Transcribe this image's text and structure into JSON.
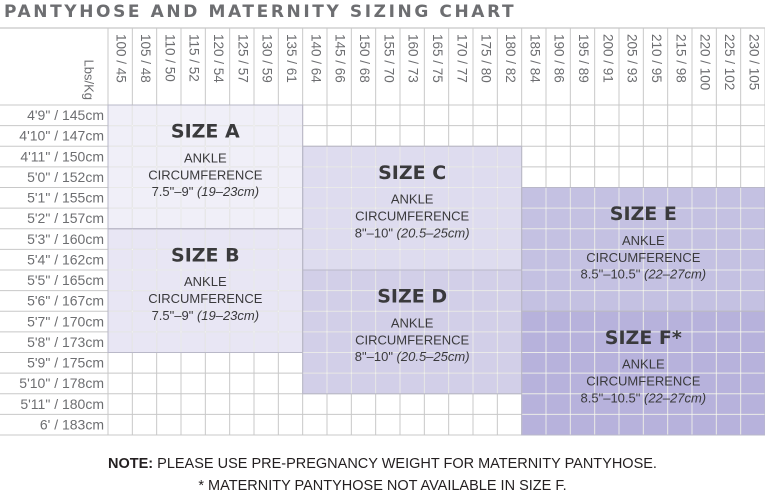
{
  "title": "PANTYHOSE AND MATERNITY SIZING CHART",
  "notes": {
    "note_label": "NOTE:",
    "note_text": " PLEASE USE PRE-PREGNANCY WEIGHT FOR MATERNITY PANTYHOSE.",
    "footnote": "* MATERNITY PANTYHOSE NOT AVAILABLE IN SIZE F."
  },
  "chart_data": {
    "type": "table",
    "title": "PANTYHOSE AND MATERNITY SIZING CHART",
    "corner_label": "Lbs/Kg",
    "weights": [
      "100 / 45",
      "105 / 48",
      "110 / 50",
      "115 / 52",
      "120 / 54",
      "125 / 57",
      "130 / 59",
      "135 / 61",
      "140 / 64",
      "145 / 66",
      "150 / 68",
      "155 / 70",
      "160 / 73",
      "165 / 75",
      "170 / 77",
      "175 / 80",
      "180 / 82",
      "185 / 84",
      "190 / 86",
      "195 / 89",
      "200 / 91",
      "205 / 93",
      "210 / 95",
      "215 / 98",
      "220 / 100",
      "225 / 102",
      "230 / 105"
    ],
    "heights": [
      "4'9\" / 145cm",
      "4'10\" / 147cm",
      "4'11\" / 150cm",
      "5'0\" / 152cm",
      "5'1\" / 155cm",
      "5'2\" / 157cm",
      "5'3\" / 160cm",
      "5'4\" / 162cm",
      "5'5\" / 165cm",
      "5'6\" / 167cm",
      "5'7\" / 170cm",
      "5'8\" / 173cm",
      "5'9\" / 175cm",
      "5'10\" / 178cm",
      "5'11\" / 180cm",
      "6' / 183cm"
    ],
    "sizes": [
      {
        "name": "SIZE A",
        "weight_from": "100 / 45",
        "weight_to": "135 / 61",
        "height_from": "4'9\" / 145cm",
        "height_to": "5'2\" / 157cm",
        "ankle_label": "ANKLE",
        "circ_label": "CIRCUMFERENCE",
        "range_in": "7.5\"–9\"",
        "range_cm": "(19–23cm)",
        "color": "#f0eff8"
      },
      {
        "name": "SIZE B",
        "weight_from": "100 / 45",
        "weight_to": "135 / 61",
        "height_from": "5'3\" / 160cm",
        "height_to": "5'8\" / 173cm",
        "ankle_label": "ANKLE",
        "circ_label": "CIRCUMFERENCE",
        "range_in": "7.5\"–9\"",
        "range_cm": "(19–23cm)",
        "color": "#e8e6f4"
      },
      {
        "name": "SIZE C",
        "weight_from": "140 / 64",
        "weight_to": "180 / 82",
        "height_from": "4'11\" / 150cm",
        "height_to": "5'4\" / 162cm",
        "ankle_label": "ANKLE",
        "circ_label": "CIRCUMFERENCE",
        "range_in": "8\"–10\"",
        "range_cm": "(20.5–25cm)",
        "color": "#dedcef"
      },
      {
        "name": "SIZE D",
        "weight_from": "140 / 64",
        "weight_to": "180 / 82",
        "height_from": "5'5\" / 165cm",
        "height_to": "5'10\" / 178cm",
        "ankle_label": "ANKLE",
        "circ_label": "CIRCUMFERENCE",
        "range_in": "8\"–10\"",
        "range_cm": "(20.5–25cm)",
        "color": "#d2cfe8"
      },
      {
        "name": "SIZE E",
        "weight_from": "185 / 84",
        "weight_to": "230 / 105",
        "height_from": "5'1\" / 155cm",
        "height_to": "5'6\" / 167cm",
        "ankle_label": "ANKLE",
        "circ_label": "CIRCUMFERENCE",
        "range_in": "8.5\"–10.5\"",
        "range_cm": "(22–27cm)",
        "color": "#c4c1e2"
      },
      {
        "name": "SIZE F*",
        "weight_from": "185 / 84",
        "weight_to": "230 / 105",
        "height_from": "5'7\" / 170cm",
        "height_to": "6' / 183cm",
        "ankle_label": "ANKLE",
        "circ_label": "CIRCUMFERENCE",
        "range_in": "8.5\"–10.5\"",
        "range_cm": "(22–27cm)",
        "color": "#b7b2dc"
      }
    ]
  },
  "colors": {
    "grid_line": "#c8c8c8",
    "label_text": "#6d6e71",
    "size_text": "#3a3a3c",
    "title_text": "#6d6e71"
  }
}
